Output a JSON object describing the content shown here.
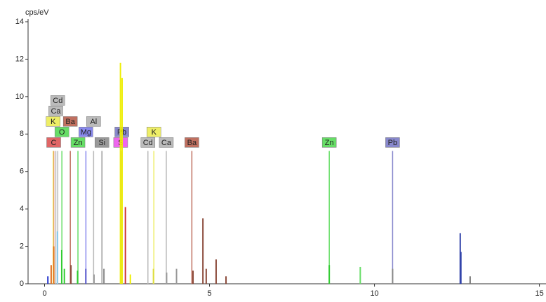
{
  "chart_data": {
    "type": "spectrum",
    "y_axis_label": "cps/eV",
    "xlim": [
      -0.5,
      15.2
    ],
    "xticks": [
      0,
      5,
      10,
      15
    ],
    "ylim": [
      0,
      14
    ],
    "yticks": [
      0,
      2,
      4,
      6,
      8,
      10,
      12,
      14
    ],
    "x": [
      0.1,
      0.2,
      0.28,
      0.39,
      0.52,
      0.6,
      0.8,
      1.0,
      1.25,
      1.5,
      1.8,
      2.3,
      2.35,
      2.45,
      2.6,
      3.3,
      3.7,
      4.0,
      4.5,
      4.8,
      4.9,
      5.2,
      5.5,
      8.63,
      9.57,
      10.55,
      12.6,
      12.62,
      12.9
    ],
    "values": [
      0.4,
      1.0,
      2.0,
      2.8,
      1.8,
      0.8,
      1.0,
      0.7,
      0.8,
      0.5,
      0.8,
      11.8,
      11.0,
      4.1,
      0.5,
      0.8,
      0.6,
      0.8,
      0.7,
      3.5,
      0.8,
      1.3,
      0.4,
      1.0,
      0.9,
      0.8,
      2.7,
      1.7,
      0.4
    ],
    "colors": [
      "#2233cc",
      "#e07020",
      "#e07020",
      "#88ccee",
      "#33cc33",
      "#33cc33",
      "#8b4a3a",
      "#33cc33",
      "#5555cc",
      "#999999",
      "#888888",
      "#eeee00",
      "#eeee00",
      "#cc3333",
      "#eeee00",
      "#dddd44",
      "#999999",
      "#999999",
      "#8b4a3a",
      "#8b4a3a",
      "#8b4a3a",
      "#8b4a3a",
      "#8b4a3a",
      "#33cc33",
      "#66dd66",
      "#888888",
      "#3344aa",
      "#3344aa",
      "#777777"
    ],
    "markers": [
      {
        "label": "C",
        "energy": 0.277,
        "height": 7.1,
        "color": "#e06666"
      },
      {
        "label": "O",
        "energy": 0.525,
        "height": 7.1,
        "color": "#66dd66"
      },
      {
        "label": "K",
        "energy": 0.26,
        "height": 7.1,
        "color": "#eeee66"
      },
      {
        "label": "Ca",
        "energy": 0.34,
        "height": 7.1,
        "color": "#bbbbbb"
      },
      {
        "label": "Cd",
        "energy": 0.4,
        "height": 7.1,
        "color": "#bbbbbb"
      },
      {
        "label": "Ba",
        "energy": 0.78,
        "height": 7.1,
        "color": "#c07060"
      },
      {
        "label": "Zn",
        "energy": 1.012,
        "height": 7.1,
        "color": "#66dd66"
      },
      {
        "label": "Mg",
        "energy": 1.253,
        "height": 7.1,
        "color": "#8888ee"
      },
      {
        "label": "Al",
        "energy": 1.486,
        "height": 7.1,
        "color": "#bbbbbb"
      },
      {
        "label": "Si",
        "energy": 1.739,
        "height": 7.1,
        "color": "#999999"
      },
      {
        "label": "S",
        "energy": 2.307,
        "height": 7.1,
        "color": "#ee66ee"
      },
      {
        "label": "Pb",
        "energy": 2.342,
        "height": 7.1,
        "color": "#8888cc"
      },
      {
        "label": "Cd",
        "energy": 3.133,
        "height": 7.1,
        "color": "#bbbbbb"
      },
      {
        "label": "K",
        "energy": 3.313,
        "height": 7.1,
        "color": "#eeee66"
      },
      {
        "label": "Ca",
        "energy": 3.69,
        "height": 7.1,
        "color": "#bbbbbb"
      },
      {
        "label": "Ba",
        "energy": 4.465,
        "height": 7.1,
        "color": "#c07060"
      },
      {
        "label": "Zn",
        "energy": 8.63,
        "height": 7.1,
        "color": "#66dd66"
      },
      {
        "label": "Pb",
        "energy": 10.55,
        "height": 7.1,
        "color": "#8888cc"
      }
    ]
  }
}
